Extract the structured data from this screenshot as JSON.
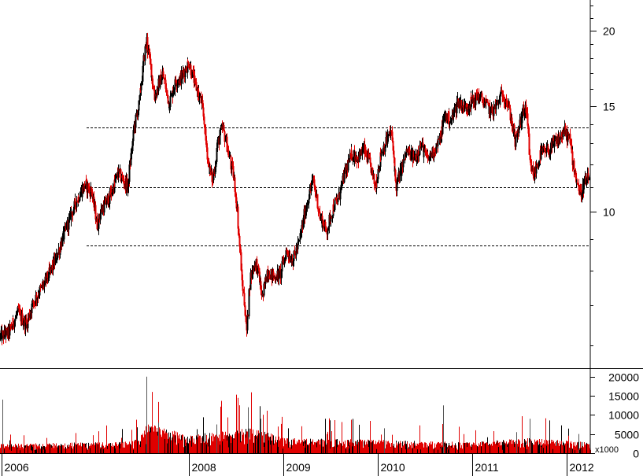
{
  "chart_data": {
    "type": "candlestick",
    "price_axis": {
      "scale": "log",
      "range": [
        5.5,
        22.5
      ],
      "ticks": [
        {
          "value": 10,
          "label": "10"
        },
        {
          "value": 15,
          "label": "15"
        },
        {
          "value": 20,
          "label": "20"
        }
      ]
    },
    "volume_axis": {
      "range": [
        0,
        22000
      ],
      "unit_label": "x1000",
      "ticks": [
        {
          "value": 0,
          "label": "0"
        },
        {
          "value": 5000,
          "label": "5000"
        },
        {
          "value": 10000,
          "label": "10000"
        },
        {
          "value": 15000,
          "label": "15000"
        },
        {
          "value": 20000,
          "label": "20000"
        }
      ]
    },
    "time_axis": {
      "range": [
        "2006-01-01",
        "2012-03-31"
      ],
      "labels": [
        {
          "date": "2006-01-01",
          "label": "2006"
        },
        {
          "date": "2008-01-01",
          "label": "2008"
        },
        {
          "date": "2009-01-01",
          "label": "2009"
        },
        {
          "date": "2010-01-01",
          "label": "2010"
        },
        {
          "date": "2011-01-01",
          "label": "2011"
        },
        {
          "date": "2012-01-01",
          "label": "2012"
        }
      ]
    },
    "reference_lines": [
      13.8,
      11.0,
      8.8
    ],
    "price_path": [
      [
        "2006-01-01",
        6.2
      ],
      [
        "2006-02-01",
        6.3
      ],
      [
        "2006-03-10",
        6.8
      ],
      [
        "2006-04-10",
        6.5
      ],
      [
        "2006-05-10",
        7.1
      ],
      [
        "2006-06-20",
        7.6
      ],
      [
        "2006-08-01",
        8.3
      ],
      [
        "2006-09-10",
        9.3
      ],
      [
        "2006-10-20",
        10.4
      ],
      [
        "2006-11-25",
        11.1
      ],
      [
        "2006-12-20",
        10.8
      ],
      [
        "2007-01-10",
        9.5
      ],
      [
        "2007-02-01",
        10.2
      ],
      [
        "2007-03-01",
        10.6
      ],
      [
        "2007-04-01",
        11.6
      ],
      [
        "2007-05-10",
        11.0
      ],
      [
        "2007-06-01",
        13.8
      ],
      [
        "2007-06-20",
        15.0
      ],
      [
        "2007-07-20",
        19.3
      ],
      [
        "2007-08-20",
        15.5
      ],
      [
        "2007-09-20",
        17.0
      ],
      [
        "2007-10-15",
        15.1
      ],
      [
        "2007-11-10",
        16.5
      ],
      [
        "2007-12-05",
        16.8
      ],
      [
        "2007-12-31",
        17.8
      ],
      [
        "2008-01-20",
        16.5
      ],
      [
        "2008-02-20",
        15.0
      ],
      [
        "2008-03-15",
        12.0
      ],
      [
        "2008-04-01",
        11.2
      ],
      [
        "2008-04-20",
        13.0
      ],
      [
        "2008-05-10",
        13.8
      ],
      [
        "2008-06-01",
        12.5
      ],
      [
        "2008-06-25",
        11.2
      ],
      [
        "2008-07-20",
        8.0
      ],
      [
        "2008-08-10",
        6.3
      ],
      [
        "2008-08-25",
        7.8
      ],
      [
        "2008-09-15",
        8.3
      ],
      [
        "2008-10-10",
        7.2
      ],
      [
        "2008-10-30",
        8.0
      ],
      [
        "2008-11-20",
        7.8
      ],
      [
        "2008-12-20",
        7.9
      ],
      [
        "2009-01-10",
        8.6
      ],
      [
        "2009-02-05",
        8.3
      ],
      [
        "2009-03-01",
        8.9
      ],
      [
        "2009-04-01",
        10.4
      ],
      [
        "2009-04-25",
        11.3
      ],
      [
        "2009-05-20",
        9.8
      ],
      [
        "2009-06-15",
        9.3
      ],
      [
        "2009-07-10",
        10.2
      ],
      [
        "2009-07-30",
        10.5
      ],
      [
        "2009-08-20",
        11.4
      ],
      [
        "2009-09-20",
        12.5
      ],
      [
        "2009-10-15",
        12.3
      ],
      [
        "2009-11-05",
        12.7
      ],
      [
        "2009-11-30",
        12.0
      ],
      [
        "2009-12-20",
        11.0
      ],
      [
        "2010-01-10",
        12.5
      ],
      [
        "2010-02-01",
        13.1
      ],
      [
        "2010-02-20",
        13.6
      ],
      [
        "2010-03-10",
        11.0
      ],
      [
        "2010-04-01",
        11.8
      ],
      [
        "2010-04-20",
        12.6
      ],
      [
        "2010-05-20",
        12.3
      ],
      [
        "2010-06-15",
        12.9
      ],
      [
        "2010-07-10",
        12.2
      ],
      [
        "2010-08-01",
        12.6
      ],
      [
        "2010-08-25",
        13.1
      ],
      [
        "2010-09-15",
        14.5
      ],
      [
        "2010-10-10",
        14.2
      ],
      [
        "2010-11-05",
        15.3
      ],
      [
        "2010-12-01",
        14.9
      ],
      [
        "2011-01-01",
        15.3
      ],
      [
        "2011-01-25",
        15.6
      ],
      [
        "2011-02-20",
        15.1
      ],
      [
        "2011-03-15",
        14.6
      ],
      [
        "2011-04-05",
        15.1
      ],
      [
        "2011-04-25",
        15.7
      ],
      [
        "2011-05-10",
        15.4
      ],
      [
        "2011-05-30",
        14.2
      ],
      [
        "2011-06-15",
        13.0
      ],
      [
        "2011-07-05",
        14.2
      ],
      [
        "2011-07-25",
        15.0
      ],
      [
        "2011-08-10",
        12.0
      ],
      [
        "2011-08-25",
        11.5
      ],
      [
        "2011-09-20",
        12.5
      ],
      [
        "2011-10-15",
        12.6
      ],
      [
        "2011-11-10",
        12.9
      ],
      [
        "2011-12-05",
        13.3
      ],
      [
        "2011-12-20",
        13.6
      ],
      [
        "2012-01-10",
        13.2
      ],
      [
        "2012-02-01",
        11.5
      ],
      [
        "2012-02-20",
        10.7
      ],
      [
        "2012-03-10",
        11.2
      ],
      [
        "2012-03-25",
        11.4
      ]
    ],
    "volume_path": [
      [
        "2006-01-01",
        1500
      ],
      [
        "2006-12-31",
        1800
      ],
      [
        "2007-06-01",
        2000
      ],
      [
        "2007-07-20",
        5000
      ],
      [
        "2007-12-31",
        3000
      ],
      [
        "2008-05-01",
        3500
      ],
      [
        "2008-09-01",
        4200
      ],
      [
        "2009-01-01",
        2500
      ],
      [
        "2010-01-01",
        2200
      ],
      [
        "2011-01-01",
        1800
      ],
      [
        "2011-08-01",
        2500
      ],
      [
        "2012-03-31",
        1800
      ]
    ],
    "volume_spikes": [
      [
        "2006-01-10",
        14000
      ],
      [
        "2007-07-22",
        20000
      ],
      [
        "2007-09-05",
        8000
      ],
      [
        "2008-08-15",
        12000
      ],
      [
        "2008-10-05",
        9000
      ],
      [
        "2008-04-15",
        7500
      ],
      [
        "2010-01-25",
        6500
      ],
      [
        "2010-09-10",
        12500
      ],
      [
        "2011-06-20",
        5500
      ],
      [
        "2011-08-10",
        9000
      ],
      [
        "2012-02-15",
        5000
      ]
    ]
  }
}
